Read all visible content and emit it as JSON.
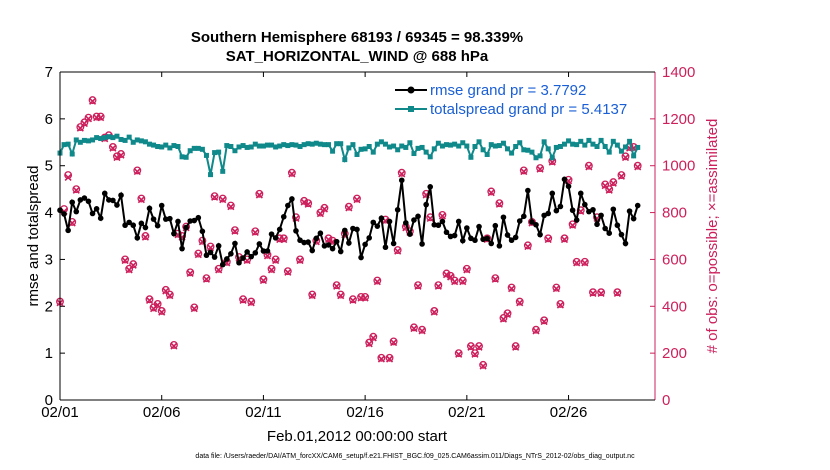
{
  "chart_data": {
    "type": "line",
    "title": "Southern Hemisphere 68193 / 69345 = 98.339%",
    "subtitle": "SAT_HORIZONTAL_WIND @ 688 hPa",
    "xlabel": "Feb.01,2012 00:00:00 start",
    "ylabel": "rmse and totalspread",
    "ylabel_right": "# of obs: o=possible; ×=assimilated",
    "footer": "data file: /Users/raeder/DAI/ATM_forcXX/CAM6_setup/f.e21.FHIST_BGC.f09_025.CAM6assim.011/Diags_NTrS_2012-02/obs_diag_output.nc",
    "xlim": [
      0,
      29.25
    ],
    "ylim": [
      0,
      7
    ],
    "ylim_right": [
      0,
      1400
    ],
    "xticks": [
      {
        "x": 0,
        "label": "02/01"
      },
      {
        "x": 5,
        "label": "02/06"
      },
      {
        "x": 10,
        "label": "02/11"
      },
      {
        "x": 15,
        "label": "02/16"
      },
      {
        "x": 20,
        "label": "02/21"
      },
      {
        "x": 25,
        "label": "02/26"
      }
    ],
    "yticks": [
      0,
      1,
      2,
      3,
      4,
      5,
      6,
      7
    ],
    "yticks_right": [
      0,
      200,
      400,
      600,
      800,
      1000,
      1200,
      1400
    ],
    "legend_position": "top-right",
    "colors": {
      "rmse": "#000000",
      "spread": "#10898b",
      "obs": "#cc1f5c"
    },
    "series": [
      {
        "name": "rmse grand pr = 3.7792",
        "axis": "left",
        "values": [
          4.05,
          3.97,
          3.62,
          4.22,
          4.02,
          4.27,
          4.31,
          4.24,
          3.98,
          4.08,
          3.88,
          4.41,
          4.27,
          4.26,
          4.16,
          4.37,
          3.73,
          3.79,
          3.73,
          3.46,
          3.77,
          3.68,
          4.09,
          3.86,
          3.72,
          4.15,
          3.86,
          3.87,
          3.55,
          3.81,
          3.23,
          3.68,
          3.82,
          3.83,
          3.89,
          3.6,
          3.09,
          3.15,
          3.05,
          3.29,
          2.89,
          3.01,
          3.12,
          3.34,
          2.93,
          3.03,
          3.16,
          3.06,
          3.14,
          3.33,
          3.18,
          3.18,
          3.54,
          3.46,
          3.64,
          3.91,
          4.15,
          4.29,
          3.61,
          3.41,
          3.36,
          3.37,
          3.19,
          3.45,
          3.56,
          3.29,
          3.31,
          3.23,
          3.38,
          3.17,
          3.62,
          3.35,
          3.66,
          3.64,
          3.04,
          3.32,
          3.46,
          3.79,
          3.71,
          3.88,
          3.26,
          3.81,
          3.34,
          4.06,
          4.69,
          3.78,
          3.54,
          3.84,
          3.92,
          3.33,
          4.17,
          4.55,
          3.74,
          3.73,
          3.81,
          3.58,
          3.49,
          3.51,
          3.81,
          3.4,
          3.67,
          3.45,
          3.41,
          3.7,
          3.43,
          3.45,
          3.34,
          3.72,
          3.29,
          3.9,
          3.52,
          3.41,
          3.47,
          3.82,
          3.92,
          4.47,
          3.8,
          3.74,
          3.53,
          3.94,
          3.98,
          4.41,
          4.04,
          4.13,
          4.71,
          4.56,
          4.05,
          3.84,
          4.41,
          4.17,
          4.02,
          4.06,
          3.75,
          3.94,
          3.66,
          3.56,
          4.07,
          3.73,
          3.53,
          3.34,
          4.03,
          3.87,
          4.15
        ]
      },
      {
        "name": "totalspread grand pr = 5.4137",
        "axis": "left",
        "values": [
          5.27,
          5.45,
          5.46,
          5.25,
          5.55,
          5.5,
          5.54,
          5.53,
          5.55,
          5.6,
          5.58,
          5.6,
          5.62,
          5.6,
          5.63,
          5.56,
          5.54,
          5.61,
          5.5,
          5.55,
          5.53,
          5.51,
          5.46,
          5.44,
          5.41,
          5.4,
          5.44,
          5.38,
          5.43,
          5.41,
          5.19,
          5.18,
          5.32,
          5.37,
          5.37,
          5.35,
          5.22,
          4.81,
          5.28,
          5.29,
          4.88,
          5.43,
          5.41,
          5.32,
          5.4,
          5.43,
          5.39,
          5.4,
          5.46,
          5.42,
          5.42,
          5.44,
          5.44,
          5.4,
          5.42,
          5.45,
          5.43,
          5.45,
          5.44,
          5.41,
          5.45,
          5.47,
          5.46,
          5.48,
          5.46,
          5.45,
          5.45,
          5.31,
          5.47,
          5.47,
          5.13,
          5.38,
          5.45,
          5.24,
          5.35,
          5.36,
          5.41,
          5.29,
          5.46,
          5.51,
          5.46,
          5.4,
          5.42,
          5.34,
          5.42,
          5.39,
          5.49,
          5.26,
          5.37,
          5.39,
          5.29,
          5.19,
          5.36,
          5.48,
          5.42,
          5.45,
          5.44,
          5.46,
          5.42,
          5.49,
          5.42,
          5.18,
          5.41,
          5.51,
          5.34,
          5.24,
          5.45,
          5.42,
          5.43,
          5.48,
          5.36,
          5.27,
          5.41,
          5.49,
          5.34,
          5.33,
          5.29,
          5.17,
          5.21,
          5.51,
          5.36,
          5.17,
          5.39,
          5.41,
          5.46,
          5.53,
          5.46,
          5.45,
          5.52,
          5.44,
          5.54,
          5.46,
          5.41,
          5.54,
          5.41,
          5.29,
          5.52,
          5.44,
          5.31,
          5.4,
          5.52,
          5.21,
          5.39
        ]
      },
      {
        "name": "obs possible",
        "axis": "right",
        "marker": "o",
        "values": [
          420,
          815,
          960,
          760,
          900,
          1165,
          1185,
          1205,
          1280,
          1210,
          1210,
          1120,
          1130,
          1080,
          1040,
          1050,
          600,
          560,
          580,
          980,
          860,
          700,
          430,
          395,
          410,
          380,
          470,
          450,
          235,
          710,
          700,
          740,
          545,
          395,
          625,
          680,
          520,
          655,
          870,
          560,
          860,
          590,
          830,
          725,
          610,
          430,
          600,
          420,
          720,
          880,
          515,
          620,
          560,
          600,
          690,
          690,
          550,
          970,
          780,
          600,
          850,
          840,
          450,
          680,
          800,
          820,
          690,
          680,
          490,
          450,
          710,
          825,
          430,
          860,
          440,
          440,
          245,
          270,
          510,
          180,
          770,
          180,
          250,
          640,
          970,
          740,
          720,
          310,
          490,
          300,
          880,
          780,
          380,
          490,
          790,
          540,
          530,
          510,
          200,
          510,
          560,
          230,
          200,
          230,
          150,
          690,
          890,
          520,
          840,
          350,
          370,
          480,
          230,
          420,
          980,
          660,
          760,
          300,
          990,
          340,
          690,
          1020,
          480,
          410,
          690,
          940,
          750,
          590,
          810,
          590,
          1000,
          460,
          780,
          460,
          920,
          900,
          930,
          460,
          960,
          1040,
          1080,
          1080,
          1000
        ]
      },
      {
        "name": "obs assimilated",
        "axis": "right",
        "marker": "x",
        "values": [
          415,
          805,
          950,
          755,
          895,
          1160,
          1180,
          1200,
          1275,
          1205,
          1205,
          1115,
          1125,
          1075,
          1035,
          1045,
          595,
          555,
          575,
          975,
          855,
          695,
          425,
          390,
          405,
          375,
          465,
          445,
          230,
          705,
          695,
          735,
          540,
          390,
          620,
          675,
          515,
          650,
          865,
          555,
          855,
          585,
          825,
          720,
          605,
          425,
          595,
          415,
          715,
          875,
          510,
          615,
          555,
          595,
          685,
          685,
          545,
          965,
          775,
          595,
          845,
          835,
          445,
          675,
          795,
          815,
          685,
          675,
          485,
          445,
          705,
          820,
          425,
          855,
          435,
          435,
          240,
          265,
          505,
          175,
          765,
          175,
          245,
          635,
          965,
          735,
          715,
          305,
          485,
          295,
          875,
          775,
          375,
          485,
          785,
          535,
          525,
          505,
          195,
          505,
          555,
          225,
          195,
          225,
          145,
          685,
          885,
          515,
          835,
          345,
          365,
          475,
          225,
          415,
          975,
          655,
          755,
          295,
          985,
          335,
          685,
          1015,
          475,
          405,
          685,
          935,
          745,
          585,
          805,
          585,
          995,
          455,
          775,
          455,
          915,
          895,
          925,
          455,
          955,
          1035,
          1075,
          1075,
          995
        ]
      }
    ]
  }
}
